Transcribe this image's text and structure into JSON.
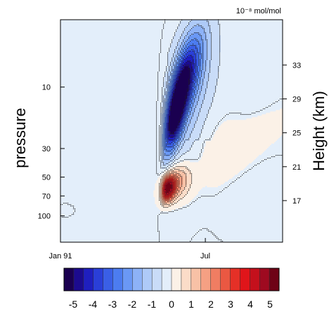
{
  "chart_data": {
    "type": "contour",
    "units": "10⁻⁸ mol/mol",
    "ylabel_left": "pressure",
    "ylabel_right": "Height (km)",
    "x_ticks": [
      "Jan 91",
      "Jul"
    ],
    "x_tick_months_since_jan91": [
      0,
      6
    ],
    "x_range_months_since_jan91": [
      0,
      9.2
    ],
    "pressure_ticks": [
      10,
      30,
      50,
      70,
      100
    ],
    "pressure_range": [
      3,
      160
    ],
    "y_scale": "log",
    "height_ticks": [
      17,
      21,
      25,
      29,
      33
    ],
    "colorbar": {
      "ticks": [
        "-5",
        "-4",
        "-3",
        "-2",
        "-1",
        "0",
        "1",
        "2",
        "3",
        "4",
        "5"
      ],
      "levels": [
        -5.5,
        -5,
        -4.5,
        -4,
        -3.5,
        -3,
        -2.5,
        -2,
        -1.5,
        -1,
        -0.5,
        0,
        0.5,
        1,
        1.5,
        2,
        2.5,
        3,
        3.5,
        4,
        4.5,
        5,
        5.5
      ],
      "colors": [
        "#1a0050",
        "#1c0b8e",
        "#1f1fbf",
        "#2a3fd8",
        "#3a5fe6",
        "#4c7cf0",
        "#6a98f5",
        "#8db2f7",
        "#aecaf8",
        "#c9dcf8",
        "#e3eefa",
        "#fbf1e7",
        "#fbdcc8",
        "#f8c1a6",
        "#f5a083",
        "#f07d62",
        "#ea5842",
        "#e53027",
        "#e0151a",
        "#c4101c",
        "#9e0a20",
        "#6e0316"
      ]
    },
    "features": [
      {
        "name": "negative anomaly",
        "min_value": -5.2,
        "location": "Jul 91, upper stratosphere (about 10–30 hPa, 25–30 km)"
      },
      {
        "name": "positive anomaly",
        "max_value": 4.8,
        "location": "Jul 91, lower stratosphere (about 60–70 hPa, 19–20 km)"
      }
    ]
  }
}
